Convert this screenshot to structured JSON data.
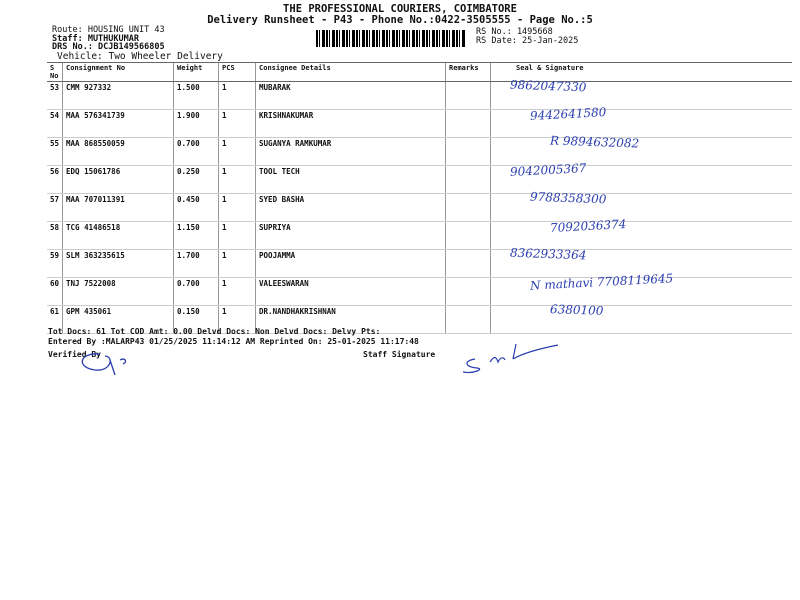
{
  "header": {
    "company": "THE PROFESSIONAL COURIERS, COIMBATORE",
    "subtitle": "Delivery Runsheet - P43 - Phone No.:0422-3505555 - Page No.:5",
    "route": "Route: HOUSING UNIT 43",
    "staff": "Staff: MUTHUKUMAR",
    "drs": "DRS No.: DCJB149566805",
    "vehicle": "Vehicle: Two Wheeler Delivery",
    "rs_no": "RS No.: 1495668",
    "rs_date": "RS Date: 25-Jan-2025"
  },
  "columns": [
    "S No",
    "Consignment No",
    "Weight",
    "PCS",
    "Consignee Details",
    "Remarks",
    "Seal & Signature"
  ],
  "rows": [
    {
      "sno": "53",
      "cn": "CMM 927332",
      "wt": "1.500",
      "pcs": "1",
      "name": "MUBARAK",
      "sig": "9862047330"
    },
    {
      "sno": "54",
      "cn": "MAA 576341739",
      "wt": "1.900",
      "pcs": "1",
      "name": "KRISHNAKUMAR",
      "sig": "9442641580"
    },
    {
      "sno": "55",
      "cn": "MAA 868550059",
      "wt": "0.700",
      "pcs": "1",
      "name": "SUGANYA RAMKUMAR",
      "sig": "R 9894632082"
    },
    {
      "sno": "56",
      "cn": "EDQ 15061786",
      "wt": "0.250",
      "pcs": "1",
      "name": "TOOL TECH",
      "sig": "9042005367"
    },
    {
      "sno": "57",
      "cn": "MAA 707011391",
      "wt": "0.450",
      "pcs": "1",
      "name": "SYED BASHA",
      "sig": "9788358300"
    },
    {
      "sno": "58",
      "cn": "TCG 41486518",
      "wt": "1.150",
      "pcs": "1",
      "name": "SUPRIYA",
      "sig": "7092036374"
    },
    {
      "sno": "59",
      "cn": "SLM 363235615",
      "wt": "1.700",
      "pcs": "1",
      "name": "POOJAMMA",
      "sig": "8362933364"
    },
    {
      "sno": "60",
      "cn": "TNJ 7522008",
      "wt": "0.700",
      "pcs": "1",
      "name": "VALEESWARAN",
      "sig": "N mathavi 7708119645"
    },
    {
      "sno": "61",
      "cn": "GPM 435061",
      "wt": "0.150",
      "pcs": "1",
      "name": "DR.NANDHAKRISHNAN",
      "sig": "6380100"
    }
  ],
  "footer": {
    "line1": "Tot Docs:  61   Tot COD Amt:    0.00     Delvd Docs:      Non Delvd Docs:      Delvy Pts:",
    "line2": "Entered By :MALARP43 01/25/2025 11:14:12 AM    Reprinted On: 25-01-2025 11:17:48",
    "verified": "Verified By",
    "staff_sig": "Staff Signature"
  },
  "ink_color": "#2a3db0"
}
